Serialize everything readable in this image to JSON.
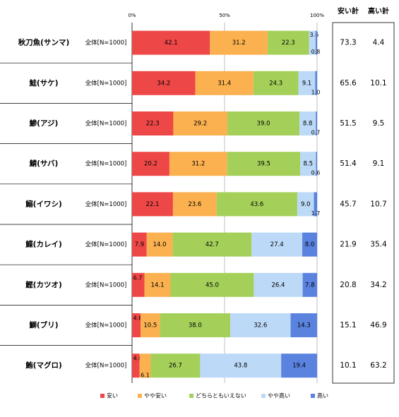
{
  "chart_data": {
    "type": "bar",
    "stacked": true,
    "orientation": "horizontal",
    "xlim": [
      0,
      100
    ],
    "x_ticks": [
      "0%",
      "50%",
      "100%"
    ],
    "row_label": "全体[N=1000]",
    "categories": [
      "秋刀魚(サンマ)",
      "鮭(サケ)",
      "鯵(アジ)",
      "鯖(サバ)",
      "鰯(イワシ)",
      "鰈(カレイ)",
      "鰹(カツオ)",
      "鰤(ブリ)",
      "鮪(マグロ)"
    ],
    "series": [
      {
        "name": "安い",
        "color": "#ee4747",
        "values": [
          42.1,
          34.2,
          22.3,
          20.2,
          22.1,
          7.9,
          6.7,
          4.6,
          4.0
        ]
      },
      {
        "name": "やや安い",
        "color": "#fbb14f",
        "values": [
          31.2,
          31.4,
          29.2,
          31.2,
          23.6,
          14.0,
          14.1,
          10.5,
          6.1
        ]
      },
      {
        "name": "どちらともいえない",
        "color": "#a4d05a",
        "values": [
          22.3,
          24.3,
          39.0,
          39.5,
          43.6,
          42.7,
          45.0,
          38.0,
          26.7
        ]
      },
      {
        "name": "やや高い",
        "color": "#bcd9f7",
        "values": [
          3.6,
          9.1,
          8.8,
          8.5,
          9.0,
          27.4,
          26.4,
          32.6,
          43.8
        ]
      },
      {
        "name": "高い",
        "color": "#5a83e0",
        "values": [
          0.8,
          1.0,
          0.7,
          0.6,
          1.7,
          8.0,
          7.8,
          14.3,
          19.4
        ]
      }
    ],
    "summary_columns": [
      {
        "header": "安い計",
        "values": [
          "73.3",
          "65.6",
          "51.5",
          "51.4",
          "45.7",
          "21.9",
          "20.8",
          "15.1",
          "10.1"
        ]
      },
      {
        "header": "高い計",
        "values": [
          "4.4",
          "10.1",
          "9.5",
          "9.1",
          "10.7",
          "35.4",
          "34.2",
          "46.9",
          "63.2"
        ]
      }
    ],
    "legend_position": "bottom"
  }
}
